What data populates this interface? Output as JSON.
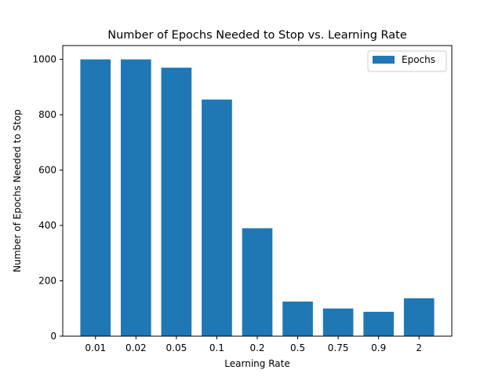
{
  "chart_data": {
    "type": "bar",
    "title": "Number of Epochs Needed to Stop vs. Learning Rate",
    "xlabel": "Learning Rate",
    "ylabel": "Number of Epochs Needed to Stop",
    "categories": [
      "0.01",
      "0.02",
      "0.05",
      "0.1",
      "0.2",
      "0.5",
      "0.75",
      "0.9",
      "2"
    ],
    "series": [
      {
        "name": "Epochs",
        "values": [
          1000,
          1000,
          970,
          855,
          390,
          125,
          100,
          88,
          137
        ]
      }
    ],
    "ylim": [
      0,
      1050
    ],
    "yticks": [
      0,
      200,
      400,
      600,
      800,
      1000
    ],
    "grid": false,
    "legend_position": "top-right",
    "colors": {
      "bar": "#1f77b4",
      "axis": "#000000",
      "legend_border": "#cccccc"
    }
  }
}
